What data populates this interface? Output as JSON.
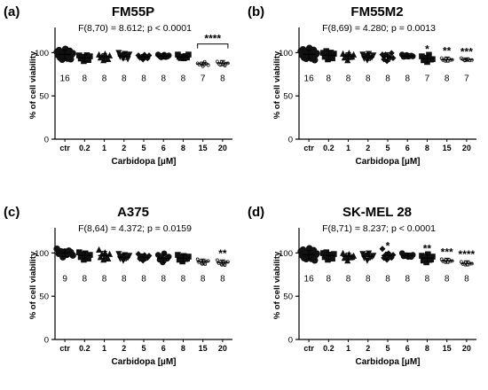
{
  "chart_data": [
    {
      "type": "scatter",
      "letter": "(a)",
      "title": "FM55P",
      "stats_text": "F(8,70) = 8.612; p < 0.0001",
      "xlabel": "Carbidopa [µM]",
      "ylabel": "% of cell viability",
      "ylim": [
        0,
        125
      ],
      "yticks": [
        0,
        50,
        100
      ],
      "grid": false,
      "categories": [
        "ctr",
        "0.2",
        "1",
        "2",
        "5",
        "6",
        "8",
        "15",
        "20"
      ],
      "n": [
        "16",
        "8",
        "8",
        "8",
        "8",
        "8",
        "8",
        "7",
        "8"
      ],
      "means": [
        98,
        94,
        95,
        96,
        95,
        96,
        95,
        87,
        88
      ],
      "sd": [
        5,
        4,
        4,
        4,
        3,
        3,
        3,
        2,
        3
      ],
      "points": [
        [
          100,
          97,
          103,
          95,
          99,
          92,
          101,
          96,
          104,
          98,
          94,
          100,
          102,
          93,
          97,
          99
        ],
        [
          96,
          93,
          95,
          91,
          94,
          97,
          92,
          95
        ],
        [
          97,
          94,
          96,
          92,
          98,
          95,
          93,
          96
        ],
        [
          99,
          95,
          97,
          94,
          98,
          96,
          93,
          97
        ],
        [
          96,
          94,
          95,
          93,
          97,
          95,
          94,
          96
        ],
        [
          97,
          96,
          95,
          96,
          97,
          95,
          96,
          96
        ],
        [
          97,
          95,
          94,
          96,
          93,
          96,
          95,
          97
        ],
        [
          87,
          86,
          88,
          85,
          89,
          87,
          86
        ],
        [
          89,
          87,
          86,
          90,
          88,
          85,
          88,
          87
        ]
      ],
      "significance": [
        "",
        "",
        "",
        "",
        "",
        "",
        "",
        "",
        ""
      ],
      "bracket": {
        "from": "15",
        "to": "20",
        "label": "****"
      }
    },
    {
      "type": "scatter",
      "letter": "(b)",
      "title": "FM55M2",
      "stats_text": "F(8,69) = 4.280; p = 0.0013",
      "xlabel": "Carbidopa [µM]",
      "ylabel": "% of cell viability",
      "ylim": [
        0,
        125
      ],
      "yticks": [
        0,
        50,
        100
      ],
      "grid": false,
      "categories": [
        "ctr",
        "0.2",
        "1",
        "2",
        "5",
        "6",
        "8",
        "15",
        "20"
      ],
      "n": [
        "16",
        "8",
        "8",
        "8",
        "8",
        "8",
        "7",
        "8",
        "7"
      ],
      "means": [
        98,
        97,
        96,
        95,
        95,
        96,
        93,
        92,
        92
      ],
      "sd": [
        5,
        5,
        4,
        4,
        5,
        3,
        4,
        3,
        2
      ],
      "points": [
        [
          101,
          97,
          104,
          95,
          99,
          93,
          102,
          96,
          105,
          98,
          94,
          100,
          103,
          92,
          97,
          99
        ],
        [
          99,
          95,
          102,
          93,
          97,
          100,
          94,
          98
        ],
        [
          98,
          94,
          97,
          92,
          99,
          95,
          96,
          97
        ],
        [
          97,
          93,
          96,
          92,
          98,
          94,
          95,
          96
        ],
        [
          97,
          92,
          98,
          91,
          95,
          94,
          100,
          93
        ],
        [
          97,
          95,
          96,
          98,
          95,
          96,
          97,
          95
        ],
        [
          95,
          91,
          94,
          90,
          97,
          92,
          93
        ],
        [
          93,
          91,
          92,
          94,
          90,
          93,
          92,
          91
        ],
        [
          93,
          92,
          91,
          93,
          92,
          91,
          92
        ]
      ],
      "significance": [
        "",
        "",
        "",
        "",
        "",
        "",
        "*",
        "**",
        "***"
      ],
      "bracket": null
    },
    {
      "type": "scatter",
      "letter": "(c)",
      "title": "A375",
      "stats_text": "F(8,64) = 4.372; p = 0.0159",
      "xlabel": "Carbidopa [µM]",
      "ylabel": "% of cell viability",
      "ylim": [
        0,
        125
      ],
      "yticks": [
        0,
        50,
        100
      ],
      "grid": false,
      "categories": [
        "ctr",
        "0.2",
        "1",
        "2",
        "5",
        "6",
        "8",
        "15",
        "20"
      ],
      "n": [
        "9",
        "8",
        "8",
        "8",
        "8",
        "8",
        "8",
        "8",
        "8"
      ],
      "means": [
        100,
        97,
        97,
        95,
        95,
        94,
        94,
        90,
        89
      ],
      "sd": [
        4,
        4,
        5,
        4,
        4,
        5,
        4,
        3,
        3
      ],
      "points": [
        [
          104,
          99,
          102,
          96,
          101,
          98,
          103,
          100,
          97
        ],
        [
          100,
          95,
          98,
          93,
          99,
          96,
          94,
          97
        ],
        [
          103,
          95,
          99,
          93,
          100,
          96,
          94,
          98
        ],
        [
          98,
          93,
          96,
          92,
          97,
          94,
          95,
          96
        ],
        [
          98,
          93,
          96,
          92,
          97,
          94,
          95,
          96
        ],
        [
          97,
          92,
          95,
          90,
          99,
          93,
          94,
          95
        ],
        [
          97,
          92,
          95,
          91,
          96,
          93,
          94,
          95
        ],
        [
          92,
          89,
          91,
          88,
          90,
          87,
          91,
          90
        ],
        [
          91,
          88,
          90,
          87,
          89,
          86,
          90,
          89
        ]
      ],
      "significance": [
        "",
        "",
        "",
        "",
        "",
        "",
        "",
        "",
        "**"
      ],
      "bracket": null
    },
    {
      "type": "scatter",
      "letter": "(d)",
      "title": "SK-MEL 28",
      "stats_text": "F(8,71) = 8.237; p < 0.0001",
      "xlabel": "Carbidopa [µM]",
      "ylabel": "% of cell viability",
      "ylim": [
        0,
        125
      ],
      "yticks": [
        0,
        50,
        100
      ],
      "grid": false,
      "categories": [
        "ctr",
        "0.2",
        "1",
        "2",
        "5",
        "6",
        "8",
        "15",
        "20"
      ],
      "n": [
        "16",
        "8",
        "8",
        "8",
        "8",
        "8",
        "8",
        "8",
        "8"
      ],
      "means": [
        98,
        97,
        96,
        96,
        97,
        97,
        94,
        91,
        88
      ],
      "sd": [
        5,
        4,
        4,
        4,
        4,
        3,
        4,
        3,
        3
      ],
      "points": [
        [
          101,
          97,
          104,
          95,
          99,
          93,
          102,
          96,
          105,
          98,
          94,
          100,
          103,
          92,
          97,
          99
        ],
        [
          99,
          95,
          101,
          93,
          97,
          96,
          94,
          98
        ],
        [
          99,
          94,
          97,
          92,
          98,
          95,
          96,
          96
        ],
        [
          98,
          94,
          97,
          92,
          99,
          95,
          96,
          96
        ],
        [
          104,
          94,
          98,
          93,
          99,
          96,
          95,
          97
        ],
        [
          99,
          96,
          97,
          98,
          95,
          97,
          96,
          97
        ],
        [
          96,
          91,
          94,
          90,
          98,
          92,
          93,
          95
        ],
        [
          92,
          90,
          91,
          93,
          89,
          92,
          91,
          90
        ],
        [
          89,
          87,
          88,
          90,
          86,
          89,
          88,
          87
        ]
      ],
      "significance": [
        "",
        "",
        "",
        "",
        "*",
        "",
        "**",
        "***",
        "****"
      ],
      "bracket": null
    }
  ]
}
